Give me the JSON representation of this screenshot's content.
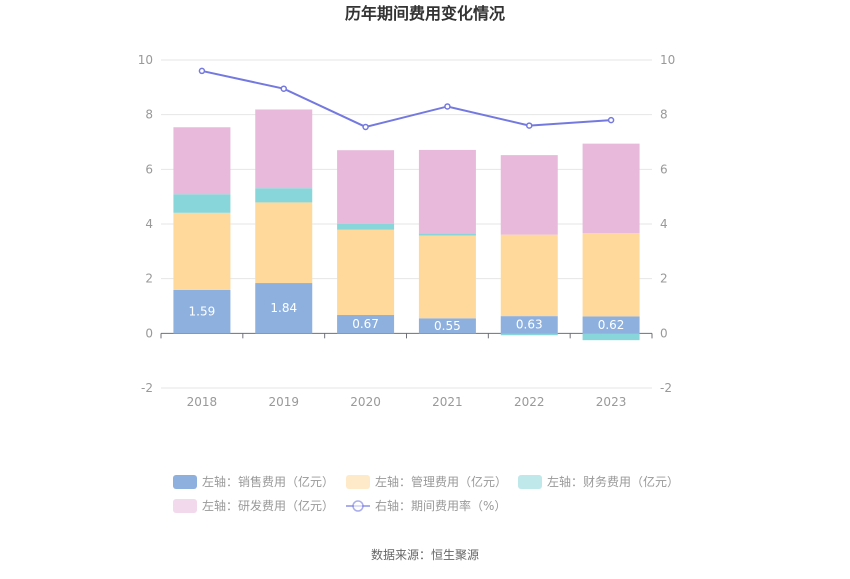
{
  "chart_data": {
    "type": "bar",
    "title": "历年期间费用变化情况",
    "categories": [
      "2018",
      "2019",
      "2020",
      "2021",
      "2022",
      "2023"
    ],
    "left_axis": {
      "ticks": [
        "10",
        "8",
        "6",
        "4",
        "2",
        "0",
        "-2"
      ],
      "ylim": [
        -2,
        10
      ]
    },
    "right_axis": {
      "ticks": [
        "10",
        "8",
        "6",
        "4",
        "2",
        "0",
        "-2"
      ],
      "ylim": [
        -2,
        10
      ]
    },
    "series": [
      {
        "name": "左轴：销售费用（亿元）",
        "kind": "bar",
        "color": "#8eb0de",
        "values": [
          1.59,
          1.84,
          0.67,
          0.55,
          0.63,
          0.62
        ],
        "labels": [
          "1.59",
          "1.84",
          "0.67",
          "0.55",
          "0.63",
          "0.62"
        ]
      },
      {
        "name": "左轴：管理费用（亿元）",
        "kind": "bar",
        "color": "#fed99b",
        "values": [
          2.82,
          2.95,
          3.12,
          3.03,
          2.98,
          3.05
        ]
      },
      {
        "name": "左轴：财务费用（亿元）",
        "kind": "bar",
        "color": "#88d6d9",
        "values": [
          0.68,
          0.52,
          0.22,
          0.08,
          -0.07,
          -0.25
        ]
      },
      {
        "name": "左轴：研发费用（亿元）",
        "kind": "bar",
        "color": "#e8b9da",
        "values": [
          2.45,
          2.88,
          2.69,
          3.05,
          2.91,
          3.27
        ]
      },
      {
        "name": "右轴：期间费用率（%）",
        "kind": "line",
        "color": "#7479e0",
        "values": [
          9.6,
          8.95,
          7.55,
          8.3,
          7.6,
          7.8
        ]
      }
    ],
    "legend_placement": "bottom",
    "grid": true,
    "source": "数据来源：恒生聚源"
  }
}
